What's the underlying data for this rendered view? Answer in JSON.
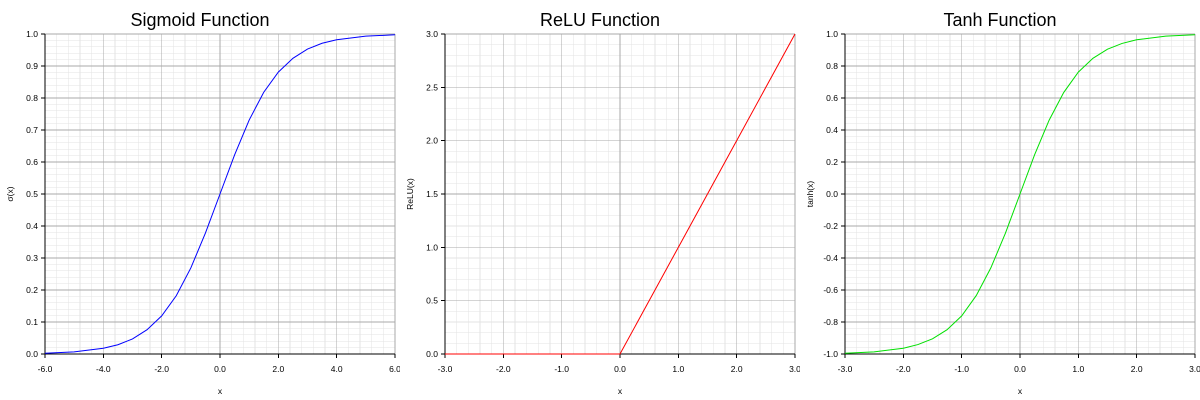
{
  "chart_data": [
    {
      "type": "line",
      "title": "Sigmoid Function",
      "xlabel": "x",
      "ylabel": "σ(x)",
      "xlim": [
        -6.0,
        6.0
      ],
      "ylim": [
        0.0,
        1.0
      ],
      "x_ticks": [
        "-6.0",
        "-4.0",
        "-2.0",
        "0.0",
        "2.0",
        "4.0",
        "6.0"
      ],
      "y_ticks": [
        "0.0",
        "0.1",
        "0.2",
        "0.3",
        "0.4",
        "0.5",
        "0.6",
        "0.7",
        "0.8",
        "0.9",
        "1.0"
      ],
      "grid": true,
      "series": [
        {
          "color": "#0000ff",
          "x": [
            -6.0,
            -5.0,
            -4.0,
            -3.5,
            -3.0,
            -2.5,
            -2.0,
            -1.5,
            -1.0,
            -0.5,
            0.0,
            0.5,
            1.0,
            1.5,
            2.0,
            2.5,
            3.0,
            3.5,
            4.0,
            5.0,
            6.0
          ],
          "y": [
            0.0025,
            0.0067,
            0.018,
            0.029,
            0.047,
            0.076,
            0.119,
            0.182,
            0.269,
            0.378,
            0.5,
            0.622,
            0.731,
            0.818,
            0.881,
            0.924,
            0.953,
            0.971,
            0.982,
            0.9933,
            0.9975
          ]
        }
      ]
    },
    {
      "type": "line",
      "title": "ReLU Function",
      "xlabel": "x",
      "ylabel": "ReLU(x)",
      "xlim": [
        -3.0,
        3.0
      ],
      "ylim": [
        0.0,
        3.0
      ],
      "x_ticks": [
        "-3.0",
        "-2.0",
        "-1.0",
        "0.0",
        "1.0",
        "2.0",
        "3.0"
      ],
      "y_ticks": [
        "0.0",
        "0.5",
        "1.0",
        "1.5",
        "2.0",
        "2.5",
        "3.0"
      ],
      "grid": true,
      "series": [
        {
          "color": "#ff0000",
          "x": [
            -3.0,
            -2.0,
            -1.0,
            0.0,
            1.0,
            2.0,
            3.0
          ],
          "y": [
            0.0,
            0.0,
            0.0,
            0.0,
            1.0,
            2.0,
            3.0
          ]
        }
      ]
    },
    {
      "type": "line",
      "title": "Tanh Function",
      "xlabel": "x",
      "ylabel": "tanh(x)",
      "xlim": [
        -3.0,
        3.0
      ],
      "ylim": [
        -1.0,
        1.0
      ],
      "x_ticks": [
        "-3.0",
        "-2.0",
        "-1.0",
        "0.0",
        "1.0",
        "2.0",
        "3.0"
      ],
      "y_ticks": [
        "-1.0",
        "-0.8",
        "-0.6",
        "-0.4",
        "-0.2",
        "0.0",
        "0.2",
        "0.4",
        "0.6",
        "0.8",
        "1.0"
      ],
      "grid": true,
      "series": [
        {
          "color": "#00e000",
          "x": [
            -3.0,
            -2.5,
            -2.0,
            -1.75,
            -1.5,
            -1.25,
            -1.0,
            -0.75,
            -0.5,
            -0.25,
            0.0,
            0.25,
            0.5,
            0.75,
            1.0,
            1.25,
            1.5,
            1.75,
            2.0,
            2.5,
            3.0
          ],
          "y": [
            -0.995,
            -0.987,
            -0.964,
            -0.941,
            -0.905,
            -0.848,
            -0.762,
            -0.635,
            -0.462,
            -0.245,
            0.0,
            0.245,
            0.462,
            0.635,
            0.762,
            0.848,
            0.905,
            0.941,
            0.964,
            0.987,
            0.995
          ]
        }
      ]
    }
  ]
}
